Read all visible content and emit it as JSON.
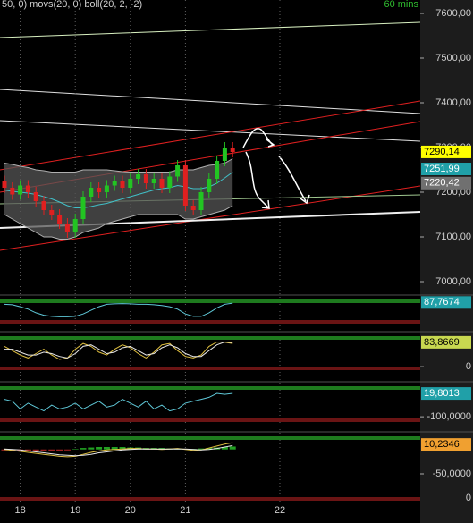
{
  "header": {
    "indicators": "50, 0) movs(20, 0) boll(20, 2, -2)",
    "interval": "60 mins"
  },
  "chart_data": [
    {
      "type": "candlestick",
      "categories": [
        null,
        null,
        "18",
        null,
        null,
        null,
        null,
        null,
        null,
        "19",
        null,
        null,
        null,
        null,
        null,
        null,
        "20",
        null,
        null,
        null,
        null,
        null,
        null,
        "21",
        null,
        null,
        null,
        null,
        null,
        null,
        null,
        null,
        null,
        null,
        null,
        "22"
      ],
      "open": [
        7225,
        7210,
        7195,
        7215,
        7200,
        7180,
        7160,
        7150,
        7130,
        7110,
        7140,
        7190,
        7210,
        7200,
        7215,
        7225,
        7210,
        7230,
        7240,
        7220,
        7230,
        7210,
        7235,
        7260,
        7170,
        7160,
        7200,
        7230,
        7270,
        7300,
        null,
        null,
        null,
        null,
        null,
        null
      ],
      "high": [
        7237,
        7222,
        7227,
        7227,
        7212,
        7192,
        7172,
        7162,
        7142,
        7152,
        7202,
        7222,
        7222,
        7227,
        7237,
        7237,
        7242,
        7252,
        7252,
        7242,
        7242,
        7247,
        7272,
        7272,
        7182,
        7212,
        7242,
        7282,
        7312,
        7312,
        null,
        null,
        null,
        null,
        null,
        null
      ],
      "low": [
        7198,
        7183,
        7183,
        7188,
        7168,
        7148,
        7138,
        7118,
        7098,
        7098,
        7128,
        7178,
        7188,
        7188,
        7203,
        7198,
        7198,
        7218,
        7208,
        7208,
        7198,
        7198,
        7223,
        7158,
        7148,
        7148,
        7188,
        7218,
        7258,
        7278,
        null,
        null,
        null,
        null,
        null,
        null
      ],
      "close": [
        7210,
        7195,
        7215,
        7200,
        7180,
        7160,
        7150,
        7130,
        7110,
        7140,
        7190,
        7210,
        7200,
        7215,
        7225,
        7210,
        7230,
        7240,
        7220,
        7230,
        7210,
        7235,
        7260,
        7170,
        7160,
        7200,
        7230,
        7270,
        7300,
        7290,
        null,
        null,
        null,
        null,
        null,
        null
      ],
      "upper": [
        7265,
        7262,
        7258,
        7255,
        7250,
        7248,
        7245,
        7245,
        7245,
        7245,
        7250,
        7250,
        7250,
        7250,
        7248,
        7246,
        7245,
        7245,
        7245,
        7245,
        7245,
        7245,
        7250,
        7250,
        7250,
        7255,
        7260,
        7262,
        7265,
        7275,
        null,
        null,
        null,
        null,
        null,
        null
      ],
      "lower": [
        7150,
        7140,
        7130,
        7120,
        7110,
        7100,
        7100,
        7095,
        7095,
        7100,
        7110,
        7115,
        7120,
        7130,
        7135,
        7140,
        7145,
        7150,
        7150,
        7150,
        7150,
        7150,
        7150,
        7140,
        7140,
        7145,
        7150,
        7155,
        7160,
        7170,
        null,
        null,
        null,
        null,
        null,
        null
      ],
      "ma": [
        7205,
        7202,
        7200,
        7198,
        7195,
        7190,
        7185,
        7178,
        7170,
        7165,
        7165,
        7168,
        7172,
        7175,
        7180,
        7185,
        7190,
        7195,
        7200,
        7205,
        7208,
        7210,
        7215,
        7212,
        7208,
        7208,
        7212,
        7220,
        7232,
        7245,
        null,
        null,
        null,
        null,
        null,
        null
      ],
      "up_color": "#22c422",
      "down_color": "#e02020",
      "band_color": "#555555",
      "band_line_color": "#b0b0b0",
      "ma_color": "#40c0c8",
      "ylim": [
        6986,
        7630
      ],
      "yticks": [
        {
          "value": 7000,
          "label": "7000,00"
        },
        {
          "value": 7100,
          "label": "7100,00"
        },
        {
          "value": 7200,
          "label": "7200,00"
        },
        {
          "value": 7300,
          "label": "7300,00"
        },
        {
          "value": 7400,
          "label": "7400,00"
        },
        {
          "value": 7500,
          "label": "7500,00"
        },
        {
          "value": 7600,
          "label": "7600,00"
        }
      ],
      "markers": {
        "values": [
          7290.14,
          7251.99,
          7220.42
        ],
        "value_labels": [
          "7290,14",
          "7251,99",
          "7220,42"
        ],
        "colors": [
          "#ffff00",
          "#20a0a8",
          "#707070"
        ],
        "text_colors": [
          "#000000",
          "#ffffff",
          "#ffffff"
        ]
      }
    },
    {
      "type": "line",
      "ylim": [
        0,
        100
      ],
      "yticks": [],
      "series": [
        {
          "color": "#5fc8d8",
          "values": [
            80,
            78,
            70,
            60,
            45,
            35,
            30,
            28,
            28,
            30,
            40,
            55,
            70,
            80,
            82,
            83,
            82,
            80,
            80,
            78,
            75,
            70,
            60,
            40,
            30,
            30,
            45,
            65,
            80,
            85,
            null,
            null,
            null,
            null,
            null,
            null
          ]
        }
      ],
      "markers": {
        "values": [
          87.7674
        ],
        "value_labels": [
          "87,7674"
        ],
        "colors": [
          "#20a0a8"
        ],
        "text_colors": [
          "#ffffff"
        ]
      }
    },
    {
      "type": "line",
      "ylim": [
        -12,
        105
      ],
      "yticks": [
        0
      ],
      "series": [
        {
          "color": "#e0c040",
          "values": [
            70,
            55,
            40,
            30,
            45,
            60,
            40,
            25,
            30,
            60,
            80,
            70,
            50,
            40,
            60,
            75,
            65,
            45,
            30,
            50,
            75,
            80,
            55,
            35,
            30,
            40,
            70,
            85,
            84,
            80,
            null,
            null,
            null,
            null,
            null,
            null
          ]
        },
        {
          "color": "#e8e8e8",
          "values": [
            60,
            60,
            50,
            40,
            40,
            50,
            45,
            35,
            30,
            45,
            70,
            75,
            60,
            45,
            50,
            65,
            70,
            55,
            40,
            45,
            65,
            75,
            65,
            45,
            35,
            35,
            55,
            75,
            85,
            83,
            null,
            null,
            null,
            null,
            null,
            null
          ]
        }
      ],
      "markers": {
        "values": [
          83.8669
        ],
        "value_labels": [
          "83,8669"
        ],
        "colors": [
          "#c8d850"
        ],
        "text_colors": [
          "#000000"
        ]
      }
    },
    {
      "type": "line",
      "ylim": [
        -127,
        57
      ],
      "yticks": [
        {
          "value": -100,
          "label": "-100,0000"
        }
      ],
      "series": [
        {
          "color": "#5fc8d8",
          "values": [
            -10,
            -20,
            -60,
            -30,
            -50,
            -70,
            -40,
            -60,
            -50,
            -30,
            -60,
            -40,
            -20,
            -50,
            -40,
            -10,
            -30,
            -50,
            -20,
            -60,
            -40,
            -70,
            -60,
            -30,
            -20,
            -10,
            0,
            20,
            15,
            20,
            null,
            null,
            null,
            null,
            null,
            null
          ]
        }
      ],
      "markers": {
        "values": [
          19.8013
        ],
        "value_labels": [
          "19,8013"
        ],
        "colors": [
          "#20a0a8"
        ],
        "text_colors": [
          "#ffffff"
        ]
      }
    },
    {
      "type": "line",
      "ylim": [
        -105,
        27
      ],
      "yticks": [
        {
          "value": -50,
          "label": "-50,0000"
        }
      ],
      "bars": [
        -2,
        -3,
        -3,
        -4,
        -4,
        -4,
        -3,
        -3,
        -2,
        1,
        3,
        4,
        5,
        5,
        5,
        5,
        4,
        4,
        3,
        3,
        3,
        2,
        2,
        1,
        1,
        2,
        3,
        4,
        5,
        6,
        null,
        null,
        null,
        null,
        null,
        null
      ],
      "bar_up_color": "#22a022",
      "bar_down_color": "#a02020",
      "series": [
        {
          "color": "#e0c040",
          "values": [
            0,
            -2,
            -4,
            -6,
            -8,
            -10,
            -12,
            -14,
            -15,
            -14,
            -10,
            -6,
            -3,
            -1,
            0,
            1,
            2,
            2,
            1,
            1,
            0,
            1,
            2,
            0,
            -2,
            -1,
            3,
            7,
            11,
            14,
            null,
            null,
            null,
            null,
            null,
            null
          ]
        },
        {
          "color": "#e8e8e8",
          "values": [
            1,
            0,
            -1,
            -3,
            -5,
            -7,
            -9,
            -11,
            -12,
            -13,
            -12,
            -10,
            -7,
            -5,
            -3,
            -1,
            0,
            1,
            1,
            1,
            1,
            1,
            1,
            1,
            0,
            -1,
            0,
            2,
            5,
            8,
            null,
            null,
            null,
            null,
            null,
            null
          ]
        }
      ],
      "markers": {
        "values": [
          10.2346
        ],
        "value_labels": [
          "10,2346"
        ],
        "colors": [
          "#f0a030"
        ],
        "text_colors": [
          "#000000"
        ]
      },
      "axis_note": "0"
    }
  ]
}
